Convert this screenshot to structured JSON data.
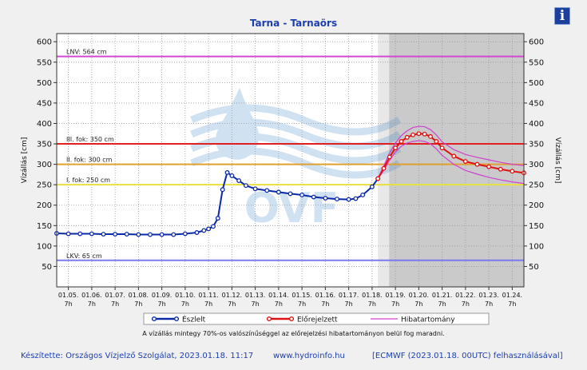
{
  "header": {
    "info_icon": "i"
  },
  "chart_data": {
    "type": "line",
    "title": "Tarna - Tarnaörs",
    "ylabel": "Vízállás [cm]",
    "ylabel_right": "Vízállás [cm]",
    "ylim": [
      0,
      620
    ],
    "yticks": [
      50,
      100,
      150,
      200,
      250,
      300,
      350,
      400,
      450,
      500,
      550,
      600
    ],
    "x_categories": [
      [
        "01.05.",
        "7h"
      ],
      [
        "01.06.",
        "7h"
      ],
      [
        "01.07.",
        "7h"
      ],
      [
        "01.08.",
        "7h"
      ],
      [
        "01.09.",
        "7h"
      ],
      [
        "01.10.",
        "7h"
      ],
      [
        "01.11.",
        "7h"
      ],
      [
        "01.12.",
        "7h"
      ],
      [
        "01.13.",
        "7h"
      ],
      [
        "01.14.",
        "7h"
      ],
      [
        "01.15.",
        "7h"
      ],
      [
        "01.16.",
        "7h"
      ],
      [
        "01.17.",
        "7h"
      ],
      [
        "01.18.",
        "7h"
      ],
      [
        "01.19.",
        "7h"
      ],
      [
        "01.20.",
        "7h"
      ],
      [
        "01.21.",
        "7h"
      ],
      [
        "01.22.",
        "7h"
      ],
      [
        "01.23.",
        "7h"
      ],
      [
        "01.24.",
        "7h"
      ]
    ],
    "forecast_start_day": 13.25,
    "reference_lines": [
      {
        "label": "LNV: 564 cm",
        "value": 564,
        "color": "#d447d4"
      },
      {
        "label": "III. fok: 350 cm",
        "value": 350,
        "color": "#e02020"
      },
      {
        "label": "II. fok: 300 cm",
        "value": 300,
        "color": "#e0a030"
      },
      {
        "label": "I. fok: 250 cm",
        "value": 250,
        "color": "#e8e040"
      },
      {
        "label": "LKV: 65 cm",
        "value": 65,
        "color": "#7b7bf0"
      }
    ],
    "series": [
      {
        "name": "Észlelt",
        "color": "#0b2aa8",
        "x": [
          -0.5,
          0,
          0.5,
          1,
          1.5,
          2,
          2.5,
          3,
          3.5,
          4,
          4.5,
          5,
          5.5,
          5.8,
          6,
          6.2,
          6.4,
          6.6,
          6.8,
          7,
          7.3,
          7.6,
          8,
          8.5,
          9,
          9.5,
          10,
          10.5,
          11,
          11.5,
          12,
          12.3,
          12.6,
          13,
          13.25
        ],
        "y": [
          131,
          130,
          130,
          130,
          129,
          129,
          129,
          128,
          128,
          128,
          128,
          130,
          133,
          138,
          142,
          148,
          168,
          238,
          280,
          272,
          260,
          248,
          240,
          236,
          232,
          228,
          225,
          220,
          217,
          215,
          214,
          216,
          225,
          245,
          265
        ]
      },
      {
        "name": "Előrejelzett",
        "color": "#e01010",
        "x": [
          13.25,
          13.5,
          13.75,
          14,
          14.25,
          14.5,
          14.75,
          15,
          15.25,
          15.5,
          15.75,
          16,
          16.5,
          17,
          17.5,
          18,
          18.5,
          19,
          19.5
        ],
        "y": [
          265,
          290,
          318,
          340,
          356,
          366,
          372,
          375,
          374,
          368,
          356,
          340,
          320,
          307,
          300,
          294,
          288,
          283,
          279
        ]
      },
      {
        "name": "Hibatartomány",
        "color": "#d040d0",
        "upper_x": [
          13.25,
          13.5,
          13.75,
          14,
          14.25,
          14.5,
          14.75,
          15,
          15.25,
          15.5,
          15.75,
          16,
          16.5,
          17,
          17.5,
          18,
          18.5,
          19,
          19.5
        ],
        "upper_y": [
          265,
          296,
          328,
          352,
          370,
          382,
          390,
          393,
          392,
          385,
          372,
          355,
          336,
          324,
          317,
          311,
          305,
          300,
          297
        ],
        "lower_x": [
          13.25,
          13.5,
          13.75,
          14,
          14.25,
          14.5,
          14.75,
          15,
          15.25,
          15.5,
          15.75,
          16,
          16.5,
          17,
          17.5,
          18,
          18.5,
          19,
          19.5
        ],
        "lower_y": [
          265,
          285,
          310,
          330,
          344,
          352,
          356,
          358,
          356,
          350,
          338,
          322,
          300,
          285,
          276,
          268,
          262,
          257,
          253
        ]
      }
    ],
    "legend": [
      "Észlelt",
      "Előrejelzett",
      "Hibatartomány"
    ],
    "legend_placement": "bottom"
  },
  "footnote": "A vízállás mintegy 70%-os valószínűséggel az előrejelzési hibatartományon belül fog maradni.",
  "footer": {
    "made_by": "Készítette: Országos Vízjelző Szolgálat, 2023.01.18. 11:17",
    "website": "www.hydroinfo.hu",
    "source": "[ECMWF (2023.01.18. 00UTC) felhasználásával]"
  },
  "watermark": "OVF"
}
